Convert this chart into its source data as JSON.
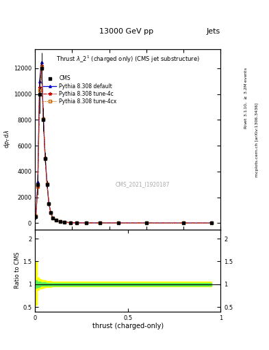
{
  "title_top": "13000 GeV pp",
  "title_right": "Jets",
  "xlabel": "thrust (charged-only)",
  "ylabel_main": "1 / mathrm{d}N / mathrm{d}p_T mathrm{d} lambda",
  "ylabel_ratio": "Ratio to CMS",
  "watermark": "CMS_2021_I1920187",
  "thrust_x": [
    0.005,
    0.015,
    0.025,
    0.035,
    0.045,
    0.055,
    0.065,
    0.075,
    0.085,
    0.095,
    0.115,
    0.135,
    0.16,
    0.19,
    0.225,
    0.275,
    0.35,
    0.45,
    0.6,
    0.8,
    0.95
  ],
  "cms_y": [
    500,
    3000,
    10000,
    12000,
    8000,
    5000,
    3000,
    1500,
    800,
    400,
    200,
    100,
    60,
    30,
    15,
    8,
    4,
    2,
    1,
    0.5,
    0.2
  ],
  "cms_yerr": [
    200,
    800,
    1500,
    1200,
    900,
    500,
    300,
    150,
    80,
    40,
    20,
    10,
    6,
    3,
    1.5,
    0.8,
    0.4,
    0.2,
    0.1,
    0.05,
    0.02
  ],
  "pythia_default_y": [
    600,
    3200,
    11000,
    12500,
    8200,
    5100,
    3050,
    1520,
    810,
    410,
    205,
    102,
    61,
    31,
    15.5,
    8.1,
    4.1,
    2.05,
    1.0,
    0.51,
    0.21
  ],
  "pythia_4c_y": [
    550,
    2900,
    10500,
    12200,
    8100,
    5050,
    3020,
    1510,
    805,
    405,
    202,
    101,
    60.5,
    30.5,
    15.2,
    8.05,
    4.05,
    2.02,
    1.0,
    0.5,
    0.2
  ],
  "pythia_4cx_y": [
    520,
    2800,
    10300,
    12100,
    8050,
    5020,
    3010,
    1505,
    802,
    402,
    201,
    100.5,
    60.2,
    30.2,
    15.1,
    8.02,
    4.02,
    2.01,
    1.0,
    0.5,
    0.2
  ],
  "yticks_main": [
    0,
    2000,
    4000,
    6000,
    8000,
    10000,
    12000
  ],
  "ytick_labels_main": [
    "0",
    "2000",
    "4000",
    "6000",
    "8000",
    "10000",
    "12000"
  ],
  "ylim_main": [
    -500,
    13500
  ],
  "green_band_upper": [
    1.08,
    1.06,
    1.05,
    1.04,
    1.04,
    1.04,
    1.03,
    1.03,
    1.03,
    1.03,
    1.03,
    1.03,
    1.03,
    1.03,
    1.03,
    1.03,
    1.03,
    1.03,
    1.03,
    1.03,
    1.03
  ],
  "green_band_lower": [
    0.92,
    0.94,
    0.95,
    0.96,
    0.96,
    0.96,
    0.97,
    0.97,
    0.97,
    0.97,
    0.97,
    0.97,
    0.97,
    0.97,
    0.97,
    0.97,
    0.97,
    0.97,
    0.97,
    0.97,
    0.97
  ],
  "yellow_band_upper": [
    1.5,
    1.15,
    1.12,
    1.1,
    1.09,
    1.08,
    1.07,
    1.07,
    1.07,
    1.06,
    1.06,
    1.06,
    1.06,
    1.06,
    1.06,
    1.05,
    1.05,
    1.05,
    1.05,
    1.05,
    1.05
  ],
  "yellow_band_lower": [
    0.55,
    0.87,
    0.9,
    0.91,
    0.92,
    0.93,
    0.94,
    0.94,
    0.94,
    0.95,
    0.95,
    0.95,
    0.95,
    0.95,
    0.95,
    0.95,
    0.95,
    0.95,
    0.95,
    0.95,
    0.95
  ],
  "color_default": "#0000cc",
  "color_4c": "#cc0000",
  "color_4cx": "#cc6600",
  "color_cms": "#000000",
  "ylim_ratio": [
    0.4,
    2.2
  ],
  "yticks_ratio": [
    0.5,
    1.0,
    1.5,
    2.0
  ],
  "xlim": [
    0.0,
    1.0
  ],
  "xticks": [
    0.0,
    0.5,
    1.0
  ],
  "xtick_labels": [
    "0",
    "0.5",
    "1"
  ]
}
